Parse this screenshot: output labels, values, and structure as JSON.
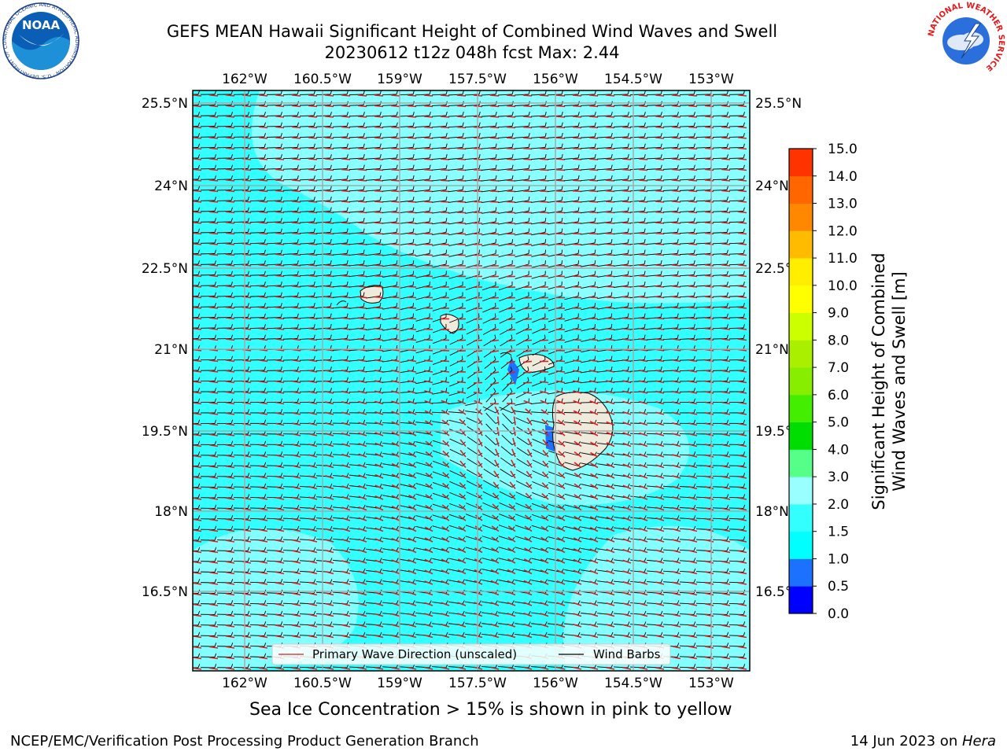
{
  "title": {
    "line1": "GEFS MEAN Hawaii Significant Height of Combined Wind Waves and Swell",
    "line2": "20230612 t12z 048h fcst   Max: 2.44"
  },
  "map": {
    "lon_labels": [
      "162°W",
      "160.5°W",
      "159°W",
      "157.5°W",
      "156°W",
      "154.5°W",
      "153°W"
    ],
    "lat_labels": [
      "25.5°N",
      "24°N",
      "22.5°N",
      "21°N",
      "19.5°N",
      "18°N",
      "16.5°N"
    ],
    "ocean_color": "#33ffff",
    "ocean_light_color": "#99ffff",
    "land_color": "#efebdc",
    "barb_color": "#000000",
    "arrow_color": "#e41a1c"
  },
  "legend": {
    "wave_direction": "Primary Wave Direction (unscaled)",
    "wind_barbs": "Wind Barbs"
  },
  "colorbar": {
    "label_line1": "Significant Height of Combined",
    "label_line2": "Wind Waves and Swell [m]",
    "ticks": [
      "0.0",
      "0.5",
      "1.0",
      "1.5",
      "2.0",
      "3.0",
      "4.0",
      "5.0",
      "6.0",
      "7.0",
      "8.0",
      "9.0",
      "10.0",
      "11.0",
      "12.0",
      "13.0",
      "14.0",
      "15.0"
    ],
    "colors": [
      "#0000ff",
      "#1c72ff",
      "#00ffff",
      "#33ffff",
      "#99ffff",
      "#55ff88",
      "#00dd00",
      "#44ee00",
      "#88ee00",
      "#aaee00",
      "#ccff00",
      "#ffff00",
      "#ffee00",
      "#ffbb00",
      "#ff8800",
      "#ff6600",
      "#ff3300",
      "#ff0000"
    ]
  },
  "note": "Sea Ice Concentration > 15% is shown in pink to yellow",
  "footer": {
    "left": "NCEP/EMC/Verification Post Processing Product Generation Branch",
    "right_prefix": "14 Jun 2023 on ",
    "right_host": "Hera"
  },
  "logos": {
    "noaa_text": "NOAA",
    "noaa_ring": "NATIONAL OCEANIC AND ATMOSPHERIC ADMINISTRATION · U.S. DEPARTMENT OF COMMERCE",
    "nws_ring": "NATIONAL WEATHER SERVICE"
  }
}
